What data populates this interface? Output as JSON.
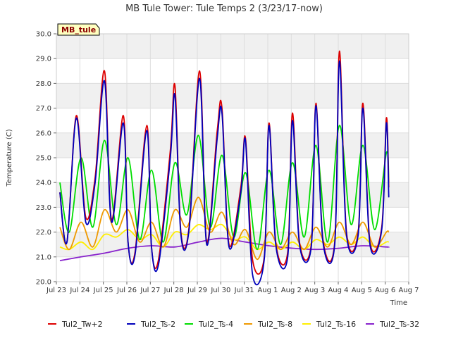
{
  "chart_data": {
    "type": "line",
    "title": "MB Tule Tower: Tule Temps 2 (3/23/17-now)",
    "xlabel": "Time",
    "ylabel": "Temperature (C)",
    "ylim": [
      20.0,
      30.0
    ],
    "xlim_days": [
      0,
      15
    ],
    "y_ticks": [
      "20.0",
      "21.0",
      "22.0",
      "23.0",
      "24.0",
      "25.0",
      "26.0",
      "27.0",
      "28.0",
      "29.0",
      "30.0"
    ],
    "x_ticks": [
      "Jul 23",
      "Jul 24",
      "Jul 25",
      "Jul 26",
      "Jul 27",
      "Jul 28",
      "Jul 29",
      "Jul 30",
      "Jul 31",
      "Aug 1",
      "Aug 2",
      "Aug 3",
      "Aug 4",
      "Aug 5",
      "Aug 6",
      "Aug 7"
    ],
    "station_badge": "MB_tule",
    "grid": true,
    "legend_position": "bottom",
    "series": [
      {
        "name": "Tul2_Tw+2",
        "color": "#dd0000",
        "x": [
          0.15,
          0.45,
          0.85,
          1.25,
          1.65,
          2.05,
          2.35,
          2.85,
          3.05,
          3.35,
          3.85,
          4.05,
          4.35,
          4.85,
          5.05,
          5.3,
          5.65,
          6.1,
          6.4,
          6.85,
          7.05,
          7.35,
          7.85,
          8.05,
          8.35,
          8.85,
          9.05,
          9.35,
          9.85,
          10.05,
          10.35,
          10.85,
          11.05,
          11.35,
          11.85,
          12.05,
          12.35,
          12.85,
          13.05,
          13.35,
          13.85,
          14.05,
          14.15
        ],
        "y": [
          23.6,
          21.6,
          26.7,
          22.6,
          24.2,
          28.5,
          22.5,
          26.7,
          21.6,
          21.2,
          26.3,
          21.4,
          20.9,
          25.3,
          27.9,
          22.0,
          22.2,
          28.5,
          21.6,
          26.1,
          27.0,
          21.5,
          23.8,
          25.8,
          20.9,
          21.0,
          26.4,
          21.5,
          21.2,
          26.8,
          21.6,
          21.5,
          27.2,
          21.7,
          21.6,
          29.3,
          22.0,
          22.0,
          27.2,
          21.6,
          22.2,
          26.6,
          23.8
        ]
      },
      {
        "name": "Tul2_Ts-2",
        "color": "#0000bb",
        "x": [
          0.15,
          0.45,
          0.85,
          1.25,
          1.65,
          2.05,
          2.35,
          2.85,
          3.05,
          3.35,
          3.85,
          4.05,
          4.35,
          4.85,
          5.05,
          5.3,
          5.65,
          6.1,
          6.4,
          6.85,
          7.05,
          7.35,
          7.85,
          8.05,
          8.35,
          8.85,
          9.05,
          9.35,
          9.85,
          10.05,
          10.35,
          10.85,
          11.05,
          11.35,
          11.85,
          12.05,
          12.35,
          12.85,
          13.05,
          13.35,
          13.85,
          14.05,
          14.15
        ],
        "y": [
          23.6,
          21.6,
          26.6,
          22.4,
          24.0,
          28.1,
          22.4,
          26.4,
          21.6,
          21.1,
          26.1,
          21.4,
          20.7,
          25.0,
          27.5,
          21.9,
          22.1,
          28.2,
          21.5,
          25.8,
          26.8,
          21.4,
          23.6,
          25.7,
          20.3,
          20.9,
          26.3,
          21.4,
          21.0,
          26.5,
          21.5,
          21.4,
          27.1,
          21.6,
          21.5,
          28.9,
          21.9,
          21.9,
          27.0,
          21.5,
          22.1,
          26.4,
          23.4
        ]
      },
      {
        "name": "Tul2_Ts-4",
        "color": "#00dd00",
        "x": [
          0.15,
          0.55,
          1.05,
          1.55,
          2.05,
          2.55,
          3.05,
          3.55,
          4.05,
          4.55,
          5.05,
          5.55,
          6.05,
          6.55,
          7.05,
          7.55,
          8.05,
          8.55,
          9.05,
          9.55,
          10.05,
          10.55,
          11.05,
          11.55,
          12.05,
          12.55,
          13.05,
          13.55,
          14.05,
          14.15
        ],
        "y": [
          24.0,
          22.0,
          25.0,
          22.2,
          25.7,
          22.3,
          25.0,
          21.7,
          24.5,
          21.6,
          24.8,
          22.7,
          25.9,
          22.2,
          25.1,
          21.8,
          24.4,
          21.3,
          24.5,
          21.5,
          24.8,
          21.8,
          25.5,
          21.6,
          26.3,
          22.3,
          25.5,
          22.1,
          25.2,
          24.0
        ]
      },
      {
        "name": "Tul2_Ts-8",
        "color": "#ee9900",
        "x": [
          0.15,
          0.55,
          1.05,
          1.55,
          2.05,
          2.55,
          3.05,
          3.55,
          4.05,
          4.55,
          5.05,
          5.55,
          6.05,
          6.55,
          7.05,
          7.55,
          8.05,
          8.55,
          9.05,
          9.55,
          10.05,
          10.55,
          11.05,
          11.55,
          12.05,
          12.55,
          13.05,
          13.55,
          14.05,
          14.15
        ],
        "y": [
          22.2,
          21.3,
          22.4,
          21.4,
          22.9,
          22.0,
          22.9,
          21.6,
          22.4,
          21.4,
          22.9,
          22.2,
          23.4,
          22.0,
          22.8,
          21.5,
          22.1,
          20.9,
          22.0,
          21.3,
          22.0,
          21.3,
          22.2,
          21.4,
          22.4,
          21.5,
          22.4,
          21.4,
          22.0,
          22.0
        ]
      },
      {
        "name": "Tul2_Ts-16",
        "color": "#ffee00",
        "x": [
          0.15,
          0.55,
          1.05,
          1.55,
          2.05,
          2.55,
          3.05,
          3.55,
          4.05,
          4.55,
          5.05,
          5.55,
          6.05,
          6.55,
          7.05,
          7.55,
          8.05,
          8.55,
          9.05,
          9.55,
          10.05,
          10.55,
          11.05,
          11.55,
          12.05,
          12.55,
          13.05,
          13.55,
          14.05,
          14.15
        ],
        "y": [
          21.4,
          21.3,
          21.6,
          21.3,
          21.9,
          21.8,
          22.1,
          21.7,
          21.9,
          21.4,
          22.0,
          21.9,
          22.3,
          22.1,
          22.3,
          21.7,
          21.8,
          21.3,
          21.6,
          21.3,
          21.6,
          21.3,
          21.7,
          21.5,
          21.8,
          21.5,
          21.8,
          21.4,
          21.6,
          21.6
        ]
      },
      {
        "name": "Tul2_Ts-32",
        "color": "#8822cc",
        "x": [
          0.15,
          1.05,
          2.05,
          3.05,
          4.05,
          5.05,
          6.05,
          7.05,
          8.05,
          9.05,
          10.05,
          11.05,
          12.05,
          13.05,
          14.05,
          14.15
        ],
        "y": [
          20.85,
          21.0,
          21.15,
          21.35,
          21.45,
          21.4,
          21.6,
          21.75,
          21.6,
          21.45,
          21.35,
          21.3,
          21.35,
          21.45,
          21.4,
          21.4
        ]
      }
    ]
  }
}
